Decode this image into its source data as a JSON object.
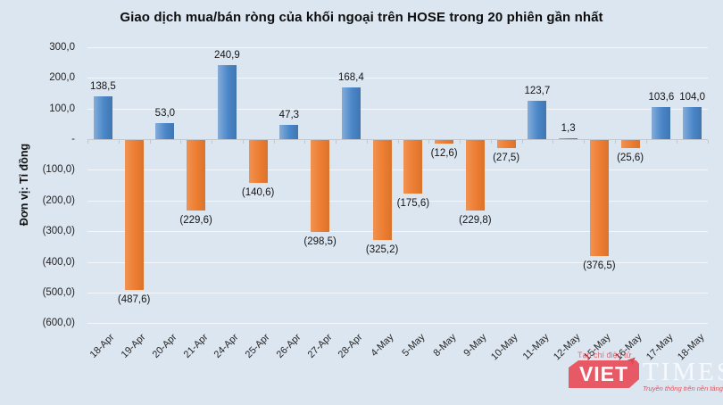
{
  "chart_data": {
    "type": "bar",
    "title": "Giao dịch mua/bán ròng của khối ngoại trên HOSE trong 20 phiên gần nhất",
    "ylabel": "Đơn vị: Tỉ đồng",
    "xlabel": "",
    "categories": [
      "18-Apr",
      "19-Apr",
      "20-Apr",
      "21-Apr",
      "24-Apr",
      "25-Apr",
      "26-Apr",
      "27-Apr",
      "28-Apr",
      "4-May",
      "5-May",
      "8-May",
      "9-May",
      "10-May",
      "11-May",
      "12-May",
      "15-May",
      "16-May",
      "17-May",
      "18-May"
    ],
    "values": [
      138.5,
      -487.6,
      53.0,
      -229.6,
      240.9,
      -140.6,
      47.3,
      -298.5,
      168.4,
      -325.2,
      -175.6,
      -12.6,
      -229.8,
      -27.5,
      123.7,
      1.3,
      -376.5,
      -25.6,
      103.6,
      104.0
    ],
    "value_labels": [
      "138,5",
      "(487,6)",
      "53,0",
      "(229,6)",
      "240,9",
      "(140,6)",
      "47,3",
      "(298,5)",
      "168,4",
      "(325,2)",
      "(175,6)",
      "(12,6)",
      "(229,8)",
      "(27,5)",
      "123,7",
      "1,3",
      "(376,5)",
      "(25,6)",
      "103,6",
      "104,0"
    ],
    "y_tick_values": [
      300,
      200,
      100,
      0,
      -100,
      -200,
      -300,
      -400,
      -500,
      -600
    ],
    "y_tick_labels": [
      "300,0",
      "200,0",
      "100,0",
      "-",
      "(100,0)",
      "(200,0)",
      "(300,0)",
      "(400,0)",
      "(500,0)",
      "(600,0)"
    ],
    "ylim": [
      -600,
      300
    ],
    "grid": true,
    "legend": false,
    "positive_color": "#4a86c8",
    "negative_color": "#ed7d31",
    "background_color": "#dce6f1"
  },
  "watermark": {
    "small_text": "Tạp chí điện tử",
    "brand_viet": "VIET",
    "brand_times": "TIMES",
    "tagline": "Truyền thông trên nền tảng số",
    "color": "#e8505b"
  }
}
